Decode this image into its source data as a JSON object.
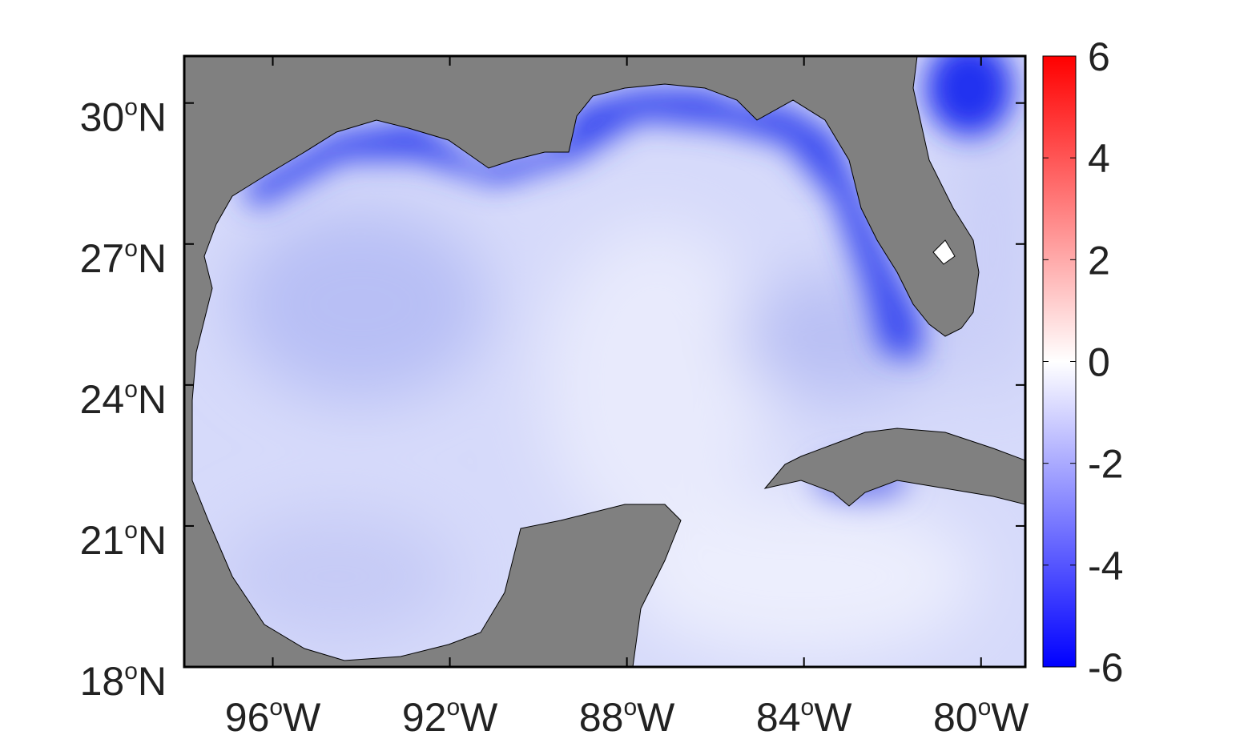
{
  "chart_data": {
    "type": "map",
    "xlim": [
      -98,
      -79
    ],
    "ylim": [
      18,
      31
    ],
    "xticks": [
      {
        "value": -96,
        "label": "96",
        "degree": "o",
        "hemisphere": "W"
      },
      {
        "value": -92,
        "label": "92",
        "degree": "o",
        "hemisphere": "W"
      },
      {
        "value": -88,
        "label": "88",
        "degree": "o",
        "hemisphere": "W"
      },
      {
        "value": -84,
        "label": "84",
        "degree": "o",
        "hemisphere": "W"
      },
      {
        "value": -80,
        "label": "80",
        "degree": "o",
        "hemisphere": "W"
      }
    ],
    "yticks": [
      {
        "value": 18,
        "label": "18",
        "degree": "o",
        "hemisphere": "N"
      },
      {
        "value": 21,
        "label": "21",
        "degree": "o",
        "hemisphere": "N"
      },
      {
        "value": 24,
        "label": "24",
        "degree": "o",
        "hemisphere": "N"
      },
      {
        "value": 27,
        "label": "27",
        "degree": "o",
        "hemisphere": "N"
      },
      {
        "value": 30,
        "label": "30",
        "degree": "o",
        "hemisphere": "N"
      }
    ],
    "colorbar": {
      "lim": [
        -6,
        6
      ],
      "ticks": [
        -6,
        -4,
        -2,
        0,
        2,
        4,
        6
      ],
      "colors": [
        "#0000ff",
        "#ffffff",
        "#ff0000"
      ]
    }
  }
}
